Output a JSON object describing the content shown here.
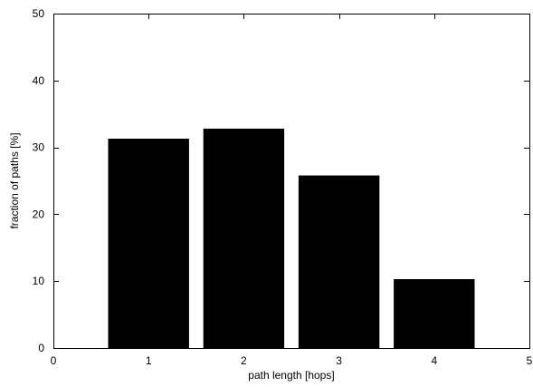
{
  "chart_data": {
    "type": "bar",
    "title": "",
    "xlabel": "path length [hops]",
    "ylabel": "fraction of paths [%]",
    "x": [
      1,
      2,
      3,
      4
    ],
    "values": [
      31.3,
      32.8,
      25.8,
      10.3
    ],
    "xlim": [
      0,
      5
    ],
    "ylim": [
      0,
      50
    ],
    "xticks": [
      0,
      1,
      2,
      3,
      4,
      5
    ],
    "yticks": [
      0,
      10,
      20,
      30,
      40,
      50
    ],
    "bar_width": 0.85,
    "grid": false,
    "legend": "none",
    "bar_color": "#000000"
  }
}
